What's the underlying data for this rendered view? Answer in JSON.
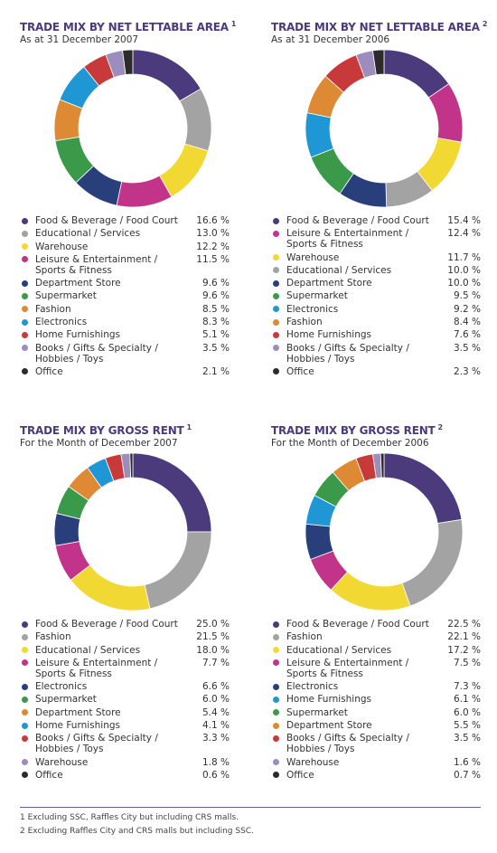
{
  "chart_data": [
    {
      "type": "pie",
      "title": "TRADE MIX BY NET LETTABLE AREA",
      "title_note": "1",
      "subtitle": "As at 31 December 2007",
      "categories": [
        "Food & Beverage / Food Court",
        "Educational / Services",
        "Warehouse",
        "Leisure & Entertainment /\nSports & Fitness",
        "Department Store",
        "Supermarket",
        "Fashion",
        "Electronics",
        "Home Furnishings",
        "Books / Gifts & Specialty /\nHobbies / Toys",
        "Office"
      ],
      "values": [
        16.6,
        13.0,
        12.2,
        11.5,
        9.6,
        9.6,
        8.5,
        8.3,
        5.1,
        3.5,
        2.1
      ],
      "value_labels": [
        "16.6 %",
        "13.0 %",
        "12.2 %",
        "11.5 %",
        "9.6 %",
        "9.6 %",
        "8.5 %",
        "8.3 %",
        "5.1 %",
        "3.5 %",
        "2.1 %"
      ],
      "colors": [
        "#4b3a7c",
        "#a3a3a3",
        "#f2d833",
        "#c2338a",
        "#283f7c",
        "#3a9a4a",
        "#de8a35",
        "#1f97d4",
        "#c8393a",
        "#9d8dbd",
        "#2b2b2b"
      ]
    },
    {
      "type": "pie",
      "title": "TRADE MIX BY NET LETTABLE AREA",
      "title_note": "2",
      "subtitle": "As at 31 December 2006",
      "categories": [
        "Food & Beverage / Food Court",
        "Leisure & Entertainment /\nSports & Fitness",
        "Warehouse",
        "Educational / Services",
        "Department Store",
        "Supermarket",
        "Electronics",
        "Fashion",
        "Home Furnishings",
        "Books / Gifts & Specialty /\nHobbies / Toys",
        "Office"
      ],
      "values": [
        15.4,
        12.4,
        11.7,
        10.0,
        10.0,
        9.5,
        9.2,
        8.4,
        7.6,
        3.5,
        2.3
      ],
      "value_labels": [
        "15.4 %",
        "12.4 %",
        "11.7 %",
        "10.0 %",
        "10.0 %",
        "9.5 %",
        "9.2 %",
        "8.4 %",
        "7.6 %",
        "3.5 %",
        "2.3 %"
      ],
      "colors": [
        "#4b3a7c",
        "#c2338a",
        "#f2d833",
        "#a3a3a3",
        "#283f7c",
        "#3a9a4a",
        "#1f97d4",
        "#de8a35",
        "#c8393a",
        "#9d8dbd",
        "#2b2b2b"
      ]
    },
    {
      "type": "pie",
      "title": "TRADE MIX BY GROSS RENT",
      "title_note": "1",
      "subtitle": "For the Month of December 2007",
      "categories": [
        "Food & Beverage / Food Court",
        "Fashion",
        "Educational / Services",
        "Leisure & Entertainment /\nSports & Fitness",
        "Electronics",
        "Supermarket",
        "Department Store",
        "Home Furnishings",
        "Books / Gifts & Specialty /\nHobbies / Toys",
        "Warehouse",
        "Office"
      ],
      "values": [
        25.0,
        21.5,
        18.0,
        7.7,
        6.6,
        6.0,
        5.4,
        4.1,
        3.3,
        1.8,
        0.6
      ],
      "value_labels": [
        "25.0 %",
        "21.5 %",
        "18.0 %",
        "7.7 %",
        "6.6 %",
        "6.0 %",
        "5.4 %",
        "4.1 %",
        "3.3 %",
        "1.8 %",
        "0.6 %"
      ],
      "colors": [
        "#4b3a7c",
        "#a3a3a3",
        "#f2d833",
        "#c2338a",
        "#283f7c",
        "#3a9a4a",
        "#de8a35",
        "#1f97d4",
        "#c8393a",
        "#9d8dbd",
        "#2b2b2b"
      ]
    },
    {
      "type": "pie",
      "title": "TRADE MIX BY GROSS RENT",
      "title_note": "2",
      "subtitle": "For the Month of December 2006",
      "categories": [
        "Food & Beverage / Food Court",
        "Fashion",
        "Educational / Services",
        "Leisure & Entertainment /\nSports & Fitness",
        "Electronics",
        "Home Furnishings",
        "Supermarket",
        "Department Store",
        "Books / Gifts & Specialty /\nHobbies / Toys",
        "Warehouse",
        "Office"
      ],
      "values": [
        22.5,
        22.1,
        17.2,
        7.5,
        7.3,
        6.1,
        6.0,
        5.5,
        3.5,
        1.6,
        0.7
      ],
      "value_labels": [
        "22.5 %",
        "22.1 %",
        "17.2 %",
        "7.5 %",
        "7.3 %",
        "6.1 %",
        "6.0 %",
        "5.5 %",
        "3.5 %",
        "1.6 %",
        "0.7 %"
      ],
      "colors": [
        "#4b3a7c",
        "#a3a3a3",
        "#f2d833",
        "#c2338a",
        "#283f7c",
        "#1f97d4",
        "#3a9a4a",
        "#de8a35",
        "#c8393a",
        "#9d8dbd",
        "#2b2b2b"
      ]
    }
  ],
  "footnotes": [
    {
      "mark": "1",
      "text": "Excluding SSC, Raffles City but including CRS malls."
    },
    {
      "mark": "2",
      "text": "Excluding Raffles City and CRS malls but including SSC."
    }
  ]
}
